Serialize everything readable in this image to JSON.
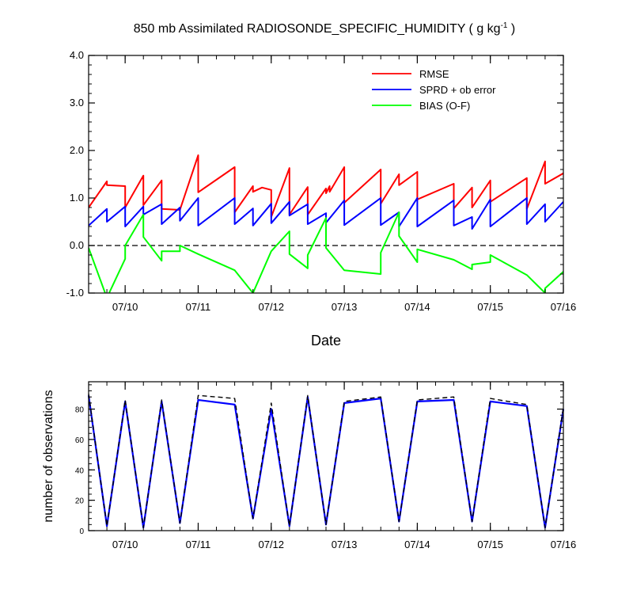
{
  "colors": {
    "rmse": "#ff0000",
    "spread": "#0000ff",
    "bias": "#00ff00",
    "obs_used": "#0000ff",
    "obs_possible": "#000000"
  },
  "chart_data": [
    {
      "type": "line",
      "title": "850 mb Assimilated RADIOSONDE_SPECIFIC_HUMIDITY ( g kg",
      "title_sup": "-1",
      "title_end": " )",
      "xlabel": "Date",
      "ylabel": "",
      "ylim": [
        -1.0,
        4.0
      ],
      "xlim_days": [
        9.5,
        16.0
      ],
      "yticks": [
        "-1.0",
        "0.0",
        "1.0",
        "2.0",
        "3.0",
        "4.0"
      ],
      "xticks": [
        "07/10",
        "07/11",
        "07/12",
        "07/13",
        "07/14",
        "07/15",
        "07/16"
      ],
      "zero_line": "dashed",
      "legend_position": "top-right",
      "series": [
        {
          "name": "RMSE",
          "x": [
            9.5,
            9.75,
            9.75,
            10.0,
            10.0,
            10.25,
            10.25,
            10.5,
            10.5,
            10.75,
            10.75,
            11.0,
            11.0,
            11.5,
            11.5,
            11.75,
            11.75,
            11.875,
            11.875,
            12.0,
            12.0,
            12.25,
            12.25,
            12.5,
            12.5,
            12.75,
            12.75,
            12.8,
            12.8,
            13.0,
            13.0,
            13.5,
            13.5,
            13.75,
            13.75,
            14.0,
            14.0,
            14.5,
            14.5,
            14.75,
            14.75,
            15.0,
            15.0,
            15.5,
            15.5,
            15.75,
            15.75,
            16.0
          ],
          "y": [
            0.8,
            1.35,
            1.27,
            1.25,
            0.8,
            1.47,
            0.85,
            1.37,
            0.77,
            0.75,
            0.75,
            1.9,
            1.12,
            1.65,
            0.7,
            1.25,
            1.13,
            1.22,
            1.22,
            1.17,
            0.6,
            1.63,
            0.65,
            1.23,
            0.65,
            1.2,
            1.1,
            1.25,
            1.13,
            1.65,
            0.9,
            1.6,
            0.88,
            1.5,
            1.27,
            1.55,
            0.97,
            1.3,
            0.78,
            1.22,
            0.8,
            1.37,
            0.92,
            1.42,
            0.77,
            1.77,
            1.3,
            1.52
          ]
        },
        {
          "name": "SPRD + ob error",
          "x": [
            9.5,
            9.75,
            9.75,
            10.0,
            10.0,
            10.25,
            10.25,
            10.5,
            10.5,
            10.75,
            10.75,
            11.0,
            11.0,
            11.5,
            11.5,
            11.75,
            11.75,
            12.0,
            12.0,
            12.25,
            12.25,
            12.5,
            12.5,
            12.75,
            12.75,
            13.0,
            13.0,
            13.5,
            13.5,
            13.75,
            13.75,
            14.0,
            14.0,
            14.5,
            14.5,
            14.75,
            14.75,
            15.0,
            15.0,
            15.5,
            15.5,
            15.75,
            15.75,
            16.0
          ],
          "y": [
            0.42,
            0.77,
            0.5,
            0.82,
            0.4,
            0.82,
            0.65,
            0.87,
            0.45,
            0.8,
            0.52,
            1.0,
            0.42,
            1.0,
            0.45,
            0.78,
            0.42,
            0.88,
            0.47,
            0.92,
            0.63,
            0.87,
            0.45,
            0.68,
            0.48,
            0.95,
            0.43,
            1.0,
            0.43,
            0.7,
            0.4,
            1.0,
            0.4,
            0.95,
            0.42,
            0.6,
            0.35,
            0.97,
            0.4,
            1.0,
            0.45,
            0.87,
            0.5,
            0.92
          ]
        },
        {
          "name": "BIAS (O-F)",
          "x": [
            9.5,
            9.75,
            10.0,
            10.0,
            10.25,
            10.25,
            10.5,
            10.5,
            10.75,
            10.75,
            11.0,
            11.5,
            11.75,
            12.0,
            12.25,
            12.25,
            12.5,
            12.5,
            12.75,
            12.75,
            13.0,
            13.5,
            13.5,
            13.75,
            13.75,
            14.0,
            14.0,
            14.5,
            14.75,
            14.75,
            15.0,
            15.0,
            15.5,
            15.75,
            15.75,
            16.0
          ],
          "y": [
            -0.05,
            -1.1,
            -0.28,
            0.0,
            0.65,
            0.18,
            -0.32,
            -0.12,
            -0.12,
            0.0,
            -0.18,
            -0.52,
            -1.0,
            -0.12,
            0.3,
            -0.18,
            -0.48,
            -0.2,
            0.58,
            -0.05,
            -0.52,
            -0.6,
            -0.15,
            0.7,
            0.2,
            -0.35,
            -0.08,
            -0.3,
            -0.5,
            -0.4,
            -0.35,
            -0.2,
            -0.62,
            -1.0,
            -0.9,
            -0.55
          ]
        }
      ]
    },
    {
      "type": "line",
      "title": "",
      "xlabel": "",
      "ylabel": "number of observations",
      "ylim": [
        0,
        98
      ],
      "xlim_days": [
        9.5,
        16.0
      ],
      "yticks": [
        "0",
        "20",
        "40",
        "60",
        "80"
      ],
      "xticks": [
        "07/10",
        "07/11",
        "07/12",
        "07/13",
        "07/14",
        "07/15",
        "07/16"
      ],
      "series": [
        {
          "name": "",
          "style": "solid",
          "x": [
            9.5,
            9.75,
            10.0,
            10.25,
            10.5,
            10.75,
            11.0,
            11.5,
            11.75,
            12.0,
            12.25,
            12.5,
            12.75,
            13.0,
            13.5,
            13.75,
            14.0,
            14.5,
            14.75,
            15.0,
            15.5,
            15.75,
            16.0
          ],
          "y": [
            89,
            3,
            85,
            2,
            85,
            5,
            86,
            83,
            8,
            80,
            3,
            88,
            4,
            84,
            87,
            6,
            85,
            86,
            6,
            85,
            82,
            2,
            80
          ]
        },
        {
          "name": "",
          "style": "dashed",
          "x": [
            9.5,
            9.75,
            10.0,
            10.25,
            10.5,
            10.75,
            11.0,
            11.5,
            11.75,
            12.0,
            12.25,
            12.5,
            12.75,
            13.0,
            13.5,
            13.75,
            14.0,
            14.5,
            14.75,
            15.0,
            15.5,
            15.75,
            16.0
          ],
          "y": [
            90,
            3,
            86,
            2,
            86,
            5,
            89,
            87,
            8,
            84,
            3,
            89,
            4,
            85,
            88,
            6,
            86,
            88,
            6,
            87,
            83,
            2,
            81
          ]
        }
      ]
    }
  ]
}
